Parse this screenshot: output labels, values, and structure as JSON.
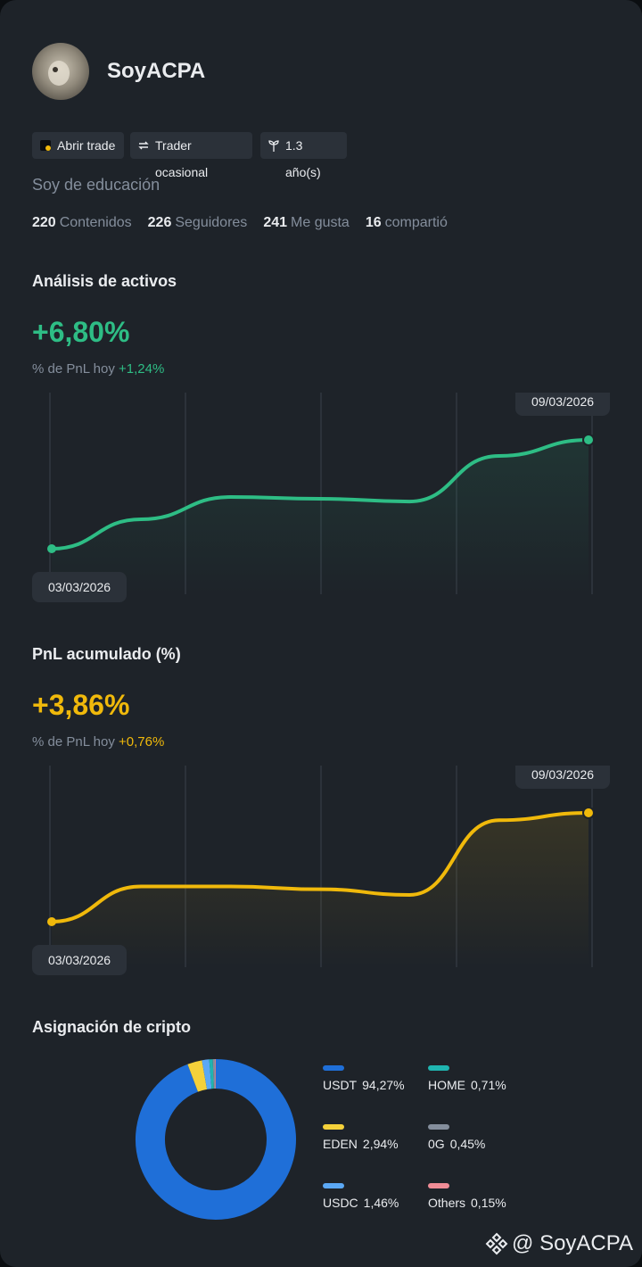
{
  "profile": {
    "name": "SoyACPA",
    "tags": [
      "Abrir trade",
      "Trader ocasional",
      "1.3 año(s)"
    ],
    "bio": "Soy de educación",
    "stats": [
      {
        "value": 220,
        "label": "Contenidos"
      },
      {
        "value": 226,
        "label": "Seguidores"
      },
      {
        "value": 241,
        "label": "Me gusta"
      },
      {
        "value": 16,
        "label": "compartió"
      }
    ]
  },
  "charts": [
    {
      "type": "line",
      "title": "Análisis de activos",
      "headline": "+6,80%",
      "subtitle": "% de PnL hoy",
      "subtitle_value": "+1,24%",
      "start_label": "03/03/2026",
      "end_label": "09/03/2026",
      "color": "#2ebd85",
      "values": [
        0,
        1.84,
        3.23,
        3.12,
        2.95,
        5.8,
        6.8
      ]
    },
    {
      "type": "line",
      "title": "PnL acumulado (%)",
      "headline": "+3,86%",
      "subtitle": "% de PnL hoy",
      "subtitle_value": "+0,76%",
      "start_label": "03/03/2026",
      "end_label": "09/03/2026",
      "color": "#f0b90b",
      "values": [
        0,
        1.25,
        1.25,
        1.15,
        0.95,
        3.6,
        3.86
      ]
    }
  ],
  "allocation": {
    "type": "donut",
    "title": "Asignación de cripto",
    "categories": [
      "USDT",
      "EDEN",
      "USDC",
      "HOME",
      "0G",
      "Others"
    ],
    "values": [
      94.27,
      2.94,
      1.46,
      0.71,
      0.45,
      0.15
    ],
    "value_labels": [
      "94,27%",
      "2,94%",
      "1,46%",
      "0,71%",
      "0,45%",
      "0,15%"
    ],
    "colors": [
      "#1f6fd8",
      "#f5d13a",
      "#5ba8f5",
      "#1fb5b0",
      "#848e9c",
      "#f08c96"
    ]
  },
  "watermark": "@ SoyACPA"
}
